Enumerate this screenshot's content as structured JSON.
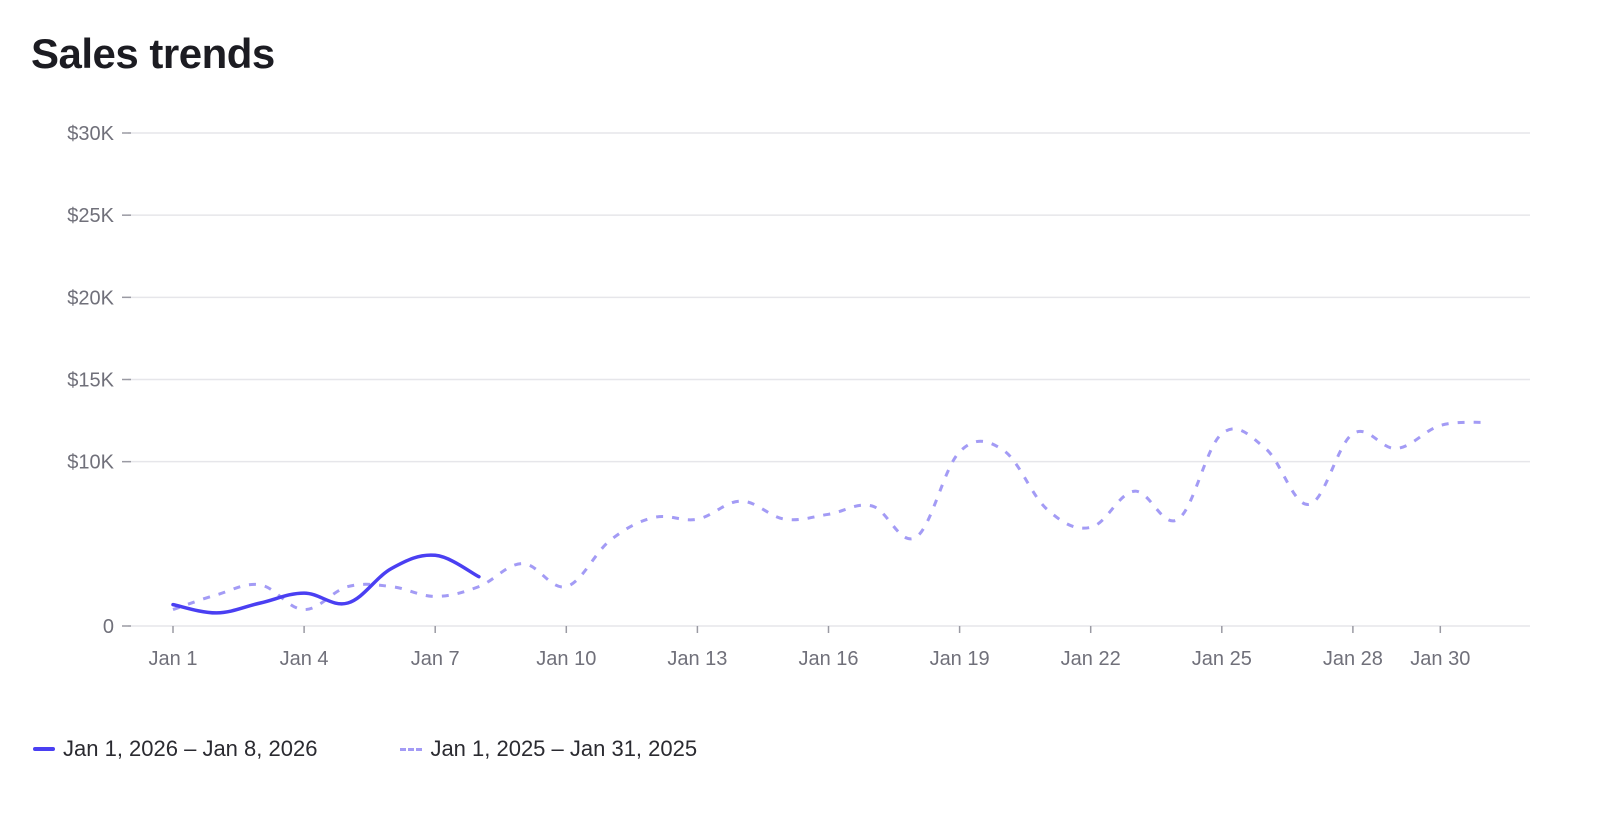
{
  "title": "Sales trends",
  "colors": {
    "current": "#4a3ff2",
    "previous": "#a39bf5",
    "grid": "#e6e6ea",
    "tick_text": "#70707a"
  },
  "chart_data": {
    "type": "line",
    "title": "Sales trends",
    "xlabel": "",
    "ylabel": "",
    "ylim": [
      0,
      30000
    ],
    "y_ticks": [
      {
        "value": 0,
        "label": "0"
      },
      {
        "value": 10000,
        "label": "$10K"
      },
      {
        "value": 15000,
        "label": "$15K"
      },
      {
        "value": 20000,
        "label": "$20K"
      },
      {
        "value": 25000,
        "label": "$25K"
      },
      {
        "value": 30000,
        "label": "$30K"
      }
    ],
    "x_axis": {
      "type": "day_of_month",
      "range": [
        1,
        31
      ]
    },
    "x_ticks": [
      {
        "value": 1,
        "label": "Jan 1"
      },
      {
        "value": 4,
        "label": "Jan 4"
      },
      {
        "value": 7,
        "label": "Jan 7"
      },
      {
        "value": 10,
        "label": "Jan 10"
      },
      {
        "value": 13,
        "label": "Jan 13"
      },
      {
        "value": 16,
        "label": "Jan 16"
      },
      {
        "value": 19,
        "label": "Jan 19"
      },
      {
        "value": 22,
        "label": "Jan 22"
      },
      {
        "value": 25,
        "label": "Jan 25"
      },
      {
        "value": 28,
        "label": "Jan 28"
      },
      {
        "value": 30,
        "label": "Jan 30"
      }
    ],
    "grid": true,
    "legend_position": "bottom-left",
    "series": [
      {
        "name": "Jan 1, 2026 – Jan 8, 2026",
        "style": "solid",
        "color": "#4a3ff2",
        "x": [
          1,
          2,
          3,
          4,
          5,
          6,
          7,
          8
        ],
        "values": [
          1300,
          800,
          1400,
          2000,
          1400,
          3500,
          4300,
          3000
        ]
      },
      {
        "name": "Jan 1, 2025 – Jan 31, 2025",
        "style": "dashed",
        "color": "#a39bf5",
        "x": [
          1,
          2,
          3,
          4,
          5,
          6,
          7,
          8,
          9,
          10,
          11,
          12,
          13,
          14,
          15,
          16,
          17,
          18,
          19,
          20,
          21,
          22,
          23,
          24,
          25,
          26,
          27,
          28,
          29,
          30,
          31
        ],
        "values": [
          1000,
          1900,
          2500,
          1000,
          2400,
          2400,
          1800,
          2400,
          3800,
          2400,
          5200,
          6600,
          6500,
          7600,
          6500,
          6800,
          7300,
          5400,
          10600,
          10700,
          7100,
          6000,
          8200,
          6500,
          11700,
          10800,
          7400,
          11700,
          10800,
          12200,
          12400
        ]
      }
    ]
  }
}
